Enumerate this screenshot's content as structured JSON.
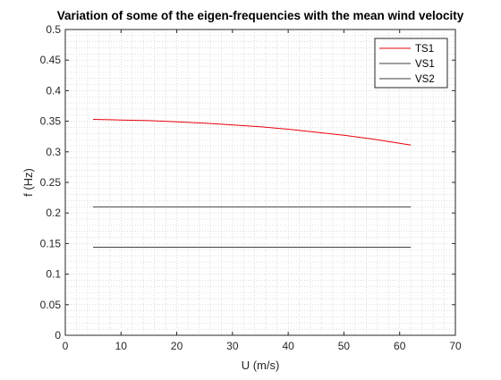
{
  "chart_data": {
    "type": "line",
    "title": "Variation of some of the eigen-frequencies with the mean wind velocity",
    "xlabel": "U (m/s)",
    "ylabel": "f (Hz)",
    "xlim": [
      0,
      70
    ],
    "ylim": [
      0,
      0.5
    ],
    "xticks": [
      "0",
      "10",
      "20",
      "30",
      "40",
      "50",
      "60",
      "70"
    ],
    "yticks": [
      "0",
      "0.05",
      "0.1",
      "0.15",
      "0.2",
      "0.25",
      "0.3",
      "0.35",
      "0.4",
      "0.45",
      "0.5"
    ],
    "grid": "minor dotted",
    "legend_position": "top-right",
    "series": [
      {
        "name": "TS1",
        "color": "#e8000b",
        "x": [
          5,
          10,
          15,
          20,
          25,
          30,
          35,
          40,
          45,
          50,
          55,
          60,
          62
        ],
        "y": [
          0.353,
          0.352,
          0.351,
          0.349,
          0.347,
          0.344,
          0.341,
          0.337,
          0.332,
          0.327,
          0.321,
          0.314,
          0.311
        ]
      },
      {
        "name": "VS1",
        "color": "#404040",
        "x": [
          5,
          62
        ],
        "y": [
          0.21,
          0.21
        ]
      },
      {
        "name": "VS2",
        "color": "#404040",
        "x": [
          5,
          62
        ],
        "y": [
          0.144,
          0.144
        ]
      }
    ]
  }
}
